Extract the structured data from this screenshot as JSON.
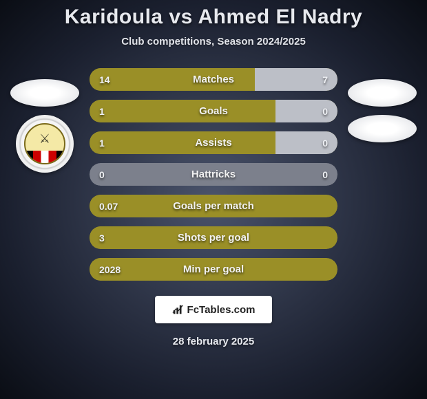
{
  "title": "Karidoula vs Ahmed El Nadry",
  "subtitle": "Club competitions, Season 2024/2025",
  "date": "28 february 2025",
  "brand": {
    "text": "FcTables.com"
  },
  "colors": {
    "bar_player1": "#9a8f27",
    "bar_player2": "#bcbfc7",
    "bar_track": "#9a8f27",
    "background_inner": "#4a536b",
    "background_outer": "#0a0d14",
    "text": "#e7e9ee"
  },
  "player1": {
    "name": "Karidoula",
    "club_badge": "eastern-company"
  },
  "player2": {
    "name": "Ahmed El Nadry",
    "club_badge": null
  },
  "stats": [
    {
      "label": "Matches",
      "p1": "14",
      "p2": "7",
      "p1_width_pct": 66.7,
      "p2_width_pct": 33.3
    },
    {
      "label": "Goals",
      "p1": "1",
      "p2": "0",
      "p1_width_pct": 75.0,
      "p2_width_pct": 25.0
    },
    {
      "label": "Assists",
      "p1": "1",
      "p2": "0",
      "p1_width_pct": 75.0,
      "p2_width_pct": 25.0
    },
    {
      "label": "Hattricks",
      "p1": "0",
      "p2": "0",
      "p1_width_pct": 0.0,
      "p2_width_pct": 0.0
    },
    {
      "label": "Goals per match",
      "p1": "0.07",
      "p2": "",
      "p1_width_pct": 90.0,
      "p2_width_pct": 0.0
    },
    {
      "label": "Shots per goal",
      "p1": "3",
      "p2": "",
      "p1_width_pct": 90.0,
      "p2_width_pct": 0.0
    },
    {
      "label": "Min per goal",
      "p1": "2028",
      "p2": "",
      "p1_width_pct": 90.0,
      "p2_width_pct": 0.0
    }
  ]
}
